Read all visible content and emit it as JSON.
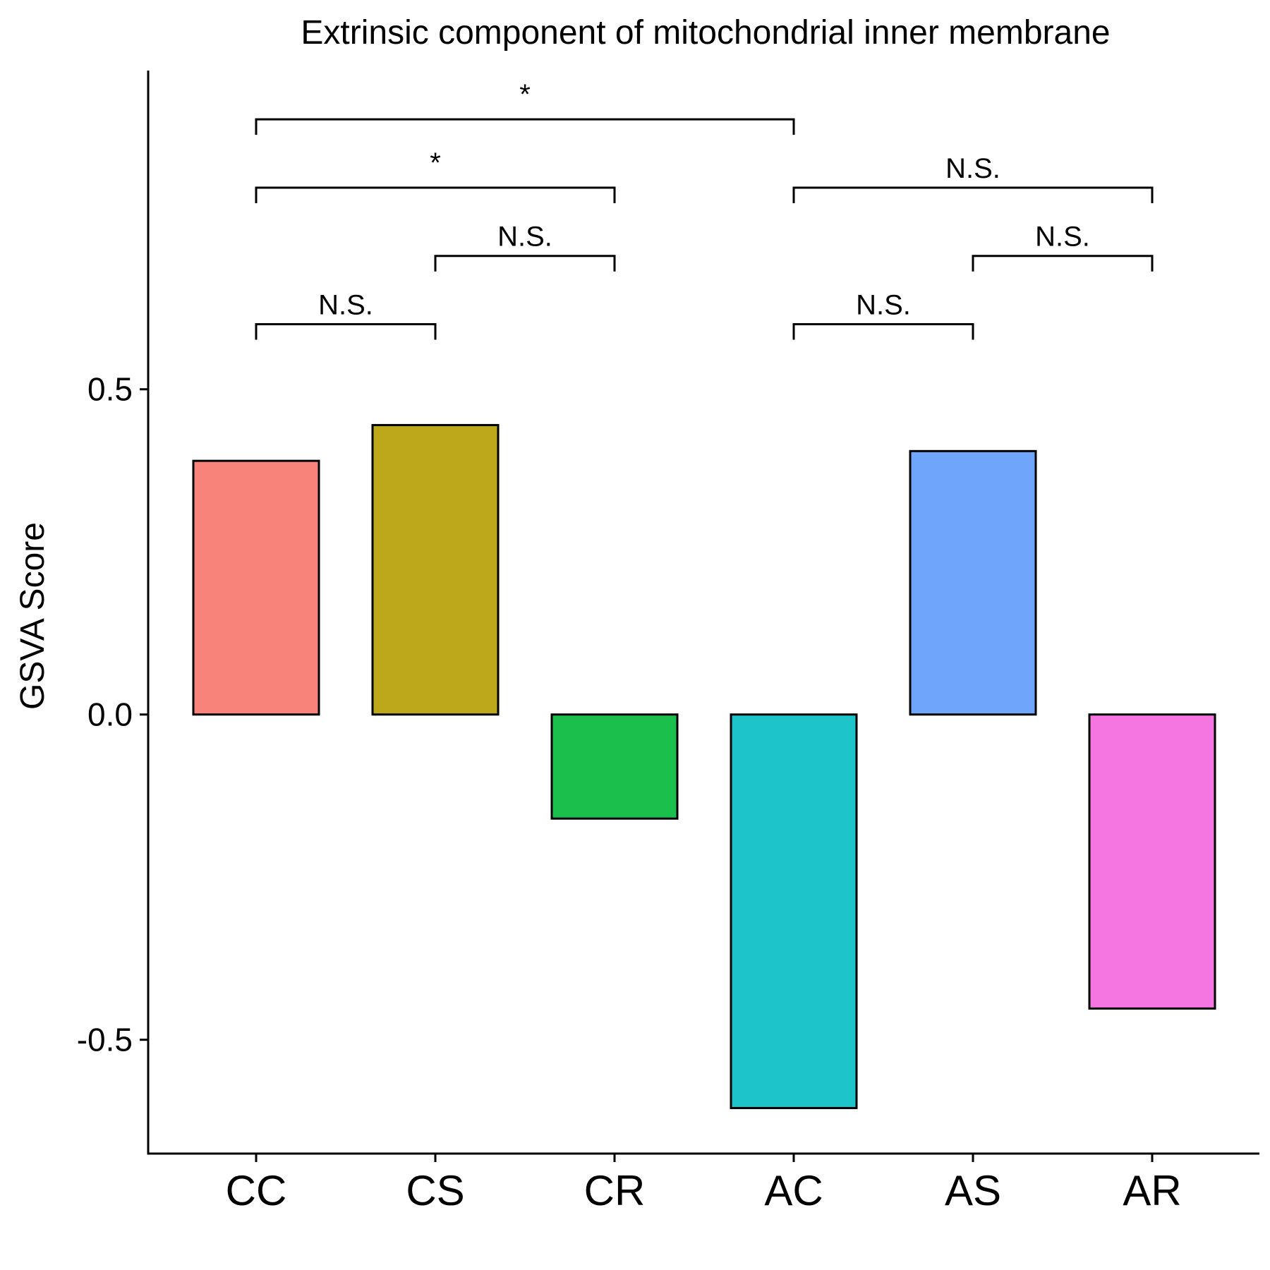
{
  "chart_data": {
    "type": "bar",
    "title": "Extrinsic component of mitochondrial inner membrane",
    "xlabel": "",
    "ylabel": "GSVA Score",
    "categories": [
      "CC",
      "CS",
      "CR",
      "AC",
      "AS",
      "AR"
    ],
    "values": [
      0.39,
      0.445,
      -0.16,
      -0.605,
      0.405,
      -0.452
    ],
    "colors": [
      "#F8837B",
      "#BDA71A",
      "#1BBF4C",
      "#1DC4CA",
      "#6FA6FC",
      "#F575E1"
    ],
    "ylim": [
      -0.675,
      0.99
    ],
    "yticks": [
      -0.5,
      0.0,
      0.5
    ],
    "ytick_labels": [
      "-0.5",
      "0.0",
      "0.5"
    ],
    "grid": false,
    "legend": "none",
    "comparisons": [
      {
        "from": "CC",
        "to": "CS",
        "label": "N.S.",
        "y": 0.6
      },
      {
        "from": "CS",
        "to": "CR",
        "label": "N.S.",
        "y": 0.705
      },
      {
        "from": "CC",
        "to": "CR",
        "label": "*",
        "y": 0.81
      },
      {
        "from": "CC",
        "to": "AC",
        "label": "*",
        "y": 0.915
      },
      {
        "from": "AC",
        "to": "AS",
        "label": "N.S.",
        "y": 0.6
      },
      {
        "from": "AS",
        "to": "AR",
        "label": "N.S.",
        "y": 0.705
      },
      {
        "from": "AC",
        "to": "AR",
        "label": "N.S.",
        "y": 0.81
      }
    ]
  }
}
